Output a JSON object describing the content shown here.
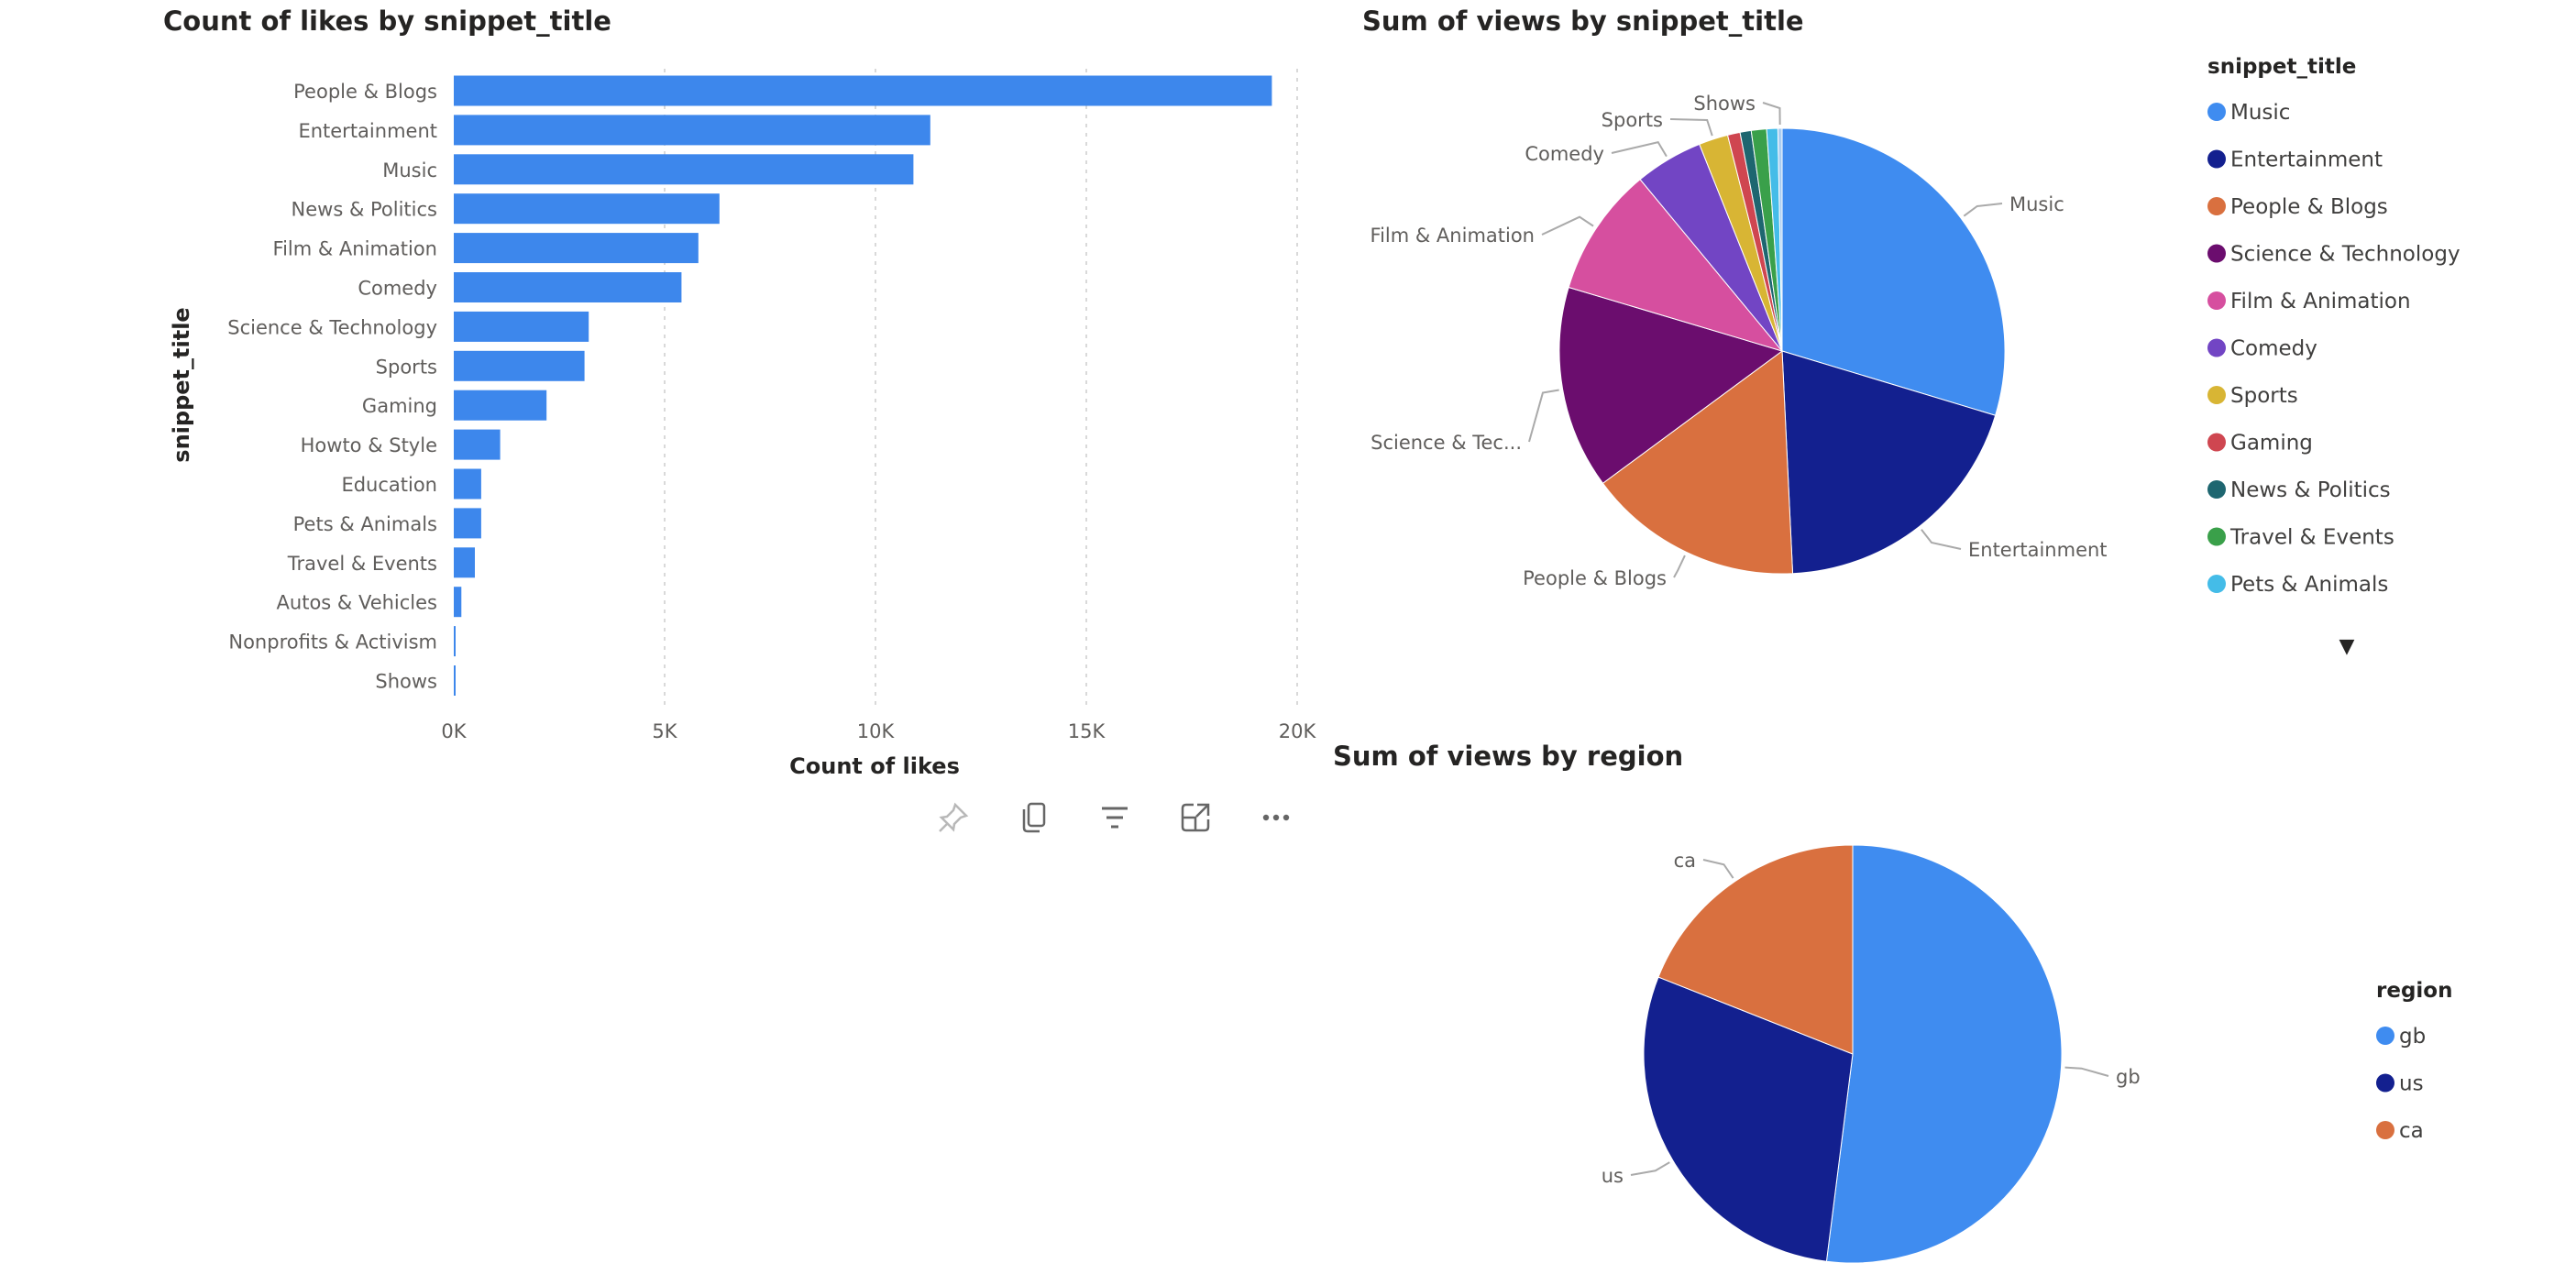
{
  "colors": {
    "bar": "#3d87ec",
    "gridline": "#d9d9d9",
    "label": "#605e5c"
  },
  "toolbar": {
    "icons": [
      "pin-icon",
      "copy-icon",
      "filter-icon",
      "focus-mode-icon",
      "more-options-icon"
    ]
  },
  "chart_data": [
    {
      "type": "bar",
      "orientation": "horizontal",
      "title": "Count of likes by snippet_title",
      "xlabel": "Count of likes",
      "ylabel": "snippet_title",
      "xlim": [
        0,
        20000
      ],
      "xticks": [
        "0K",
        "5K",
        "10K",
        "15K",
        "20K"
      ],
      "xtick_values": [
        0,
        5000,
        10000,
        15000,
        20000
      ],
      "grid": "vertical dashed",
      "categories": [
        "People & Blogs",
        "Entertainment",
        "Music",
        "News & Politics",
        "Film & Animation",
        "Comedy",
        "Science & Technology",
        "Sports",
        "Gaming",
        "Howto & Style",
        "Education",
        "Pets & Animals",
        "Travel & Events",
        "Autos & Vehicles",
        "Nonprofits & Activism",
        "Shows"
      ],
      "values": [
        19400,
        11300,
        10900,
        6300,
        5800,
        5400,
        3200,
        3100,
        2200,
        1100,
        650,
        650,
        500,
        180,
        40,
        30
      ]
    },
    {
      "type": "pie",
      "title": "Sum of views by snippet_title",
      "legend_title": "snippet_title",
      "legend_position": "right",
      "legend_more_arrow": "▼",
      "categories": [
        "Music",
        "Entertainment",
        "People & Blogs",
        "Science & Technology",
        "Film & Animation",
        "Comedy",
        "Sports",
        "Gaming",
        "News & Politics",
        "Travel & Events",
        "Pets & Animals",
        "Shows"
      ],
      "slice_labels": [
        "Music",
        "Entertainment",
        "People & Blogs",
        "Science & Tec...",
        "Film & Animation",
        "Comedy",
        "Sports",
        "",
        "",
        "",
        "",
        "Shows"
      ],
      "values": [
        29.4,
        19.4,
        15.5,
        14.6,
        9.3,
        4.9,
        2.1,
        0.9,
        0.8,
        1.1,
        0.8,
        0.3
      ],
      "colors": [
        "#3f8cf0",
        "#13208f",
        "#d9703f",
        "#6b0d6e",
        "#d64f9f",
        "#7245c4",
        "#d8b534",
        "#cf4650",
        "#1e6670",
        "#3aa04a",
        "#44bce8",
        "#a9cdf2"
      ],
      "legend_entries": [
        "Music",
        "Entertainment",
        "People & Blogs",
        "Science & Technology",
        "Film & Animation",
        "Comedy",
        "Sports",
        "Gaming",
        "News & Politics",
        "Travel & Events",
        "Pets & Animals"
      ]
    },
    {
      "type": "pie",
      "title": "Sum of views by region",
      "legend_title": "region",
      "legend_position": "right",
      "categories": [
        "gb",
        "us",
        "ca"
      ],
      "slice_labels": [
        "gb",
        "us",
        "ca"
      ],
      "values": [
        52,
        29,
        19
      ],
      "colors": [
        "#3f8cf0",
        "#13208f",
        "#d9703f"
      ],
      "legend_entries": [
        "gb",
        "us",
        "ca"
      ]
    }
  ]
}
